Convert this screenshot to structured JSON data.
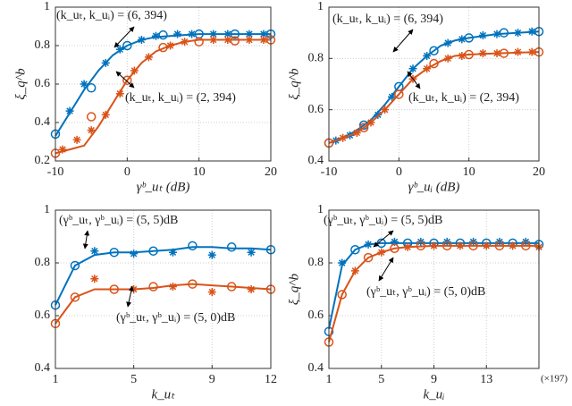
{
  "chart_data": [
    {
      "type": "line",
      "xlabel": "γᵇ_uₜ (dB)",
      "ylabel": "ξ_q^b",
      "xlim": [
        -10,
        20
      ],
      "ylim": [
        0.2,
        1
      ],
      "xticks": [
        -10,
        0,
        10,
        20
      ],
      "yticks": [
        0.2,
        0.4,
        0.6,
        0.8,
        1
      ],
      "grid": true,
      "annotations": [
        "(k_uₜ, k_uᵢ) = (6, 394)",
        "(k_uₜ, k_uᵢ) = (2, 394)"
      ],
      "series": [
        {
          "marker": "line",
          "color": "#0072bd",
          "x": [
            -10,
            -8,
            -6,
            -4,
            -2,
            0,
            2,
            4,
            6,
            8,
            10,
            14,
            20
          ],
          "values": [
            0.33,
            0.45,
            0.57,
            0.67,
            0.75,
            0.8,
            0.83,
            0.845,
            0.85,
            0.855,
            0.86,
            0.86,
            0.86
          ]
        },
        {
          "marker": "circle",
          "color": "#0072bd",
          "x": [
            -10,
            -5,
            0,
            5,
            10,
            15,
            20
          ],
          "values": [
            0.34,
            0.58,
            0.8,
            0.855,
            0.86,
            0.86,
            0.86
          ]
        },
        {
          "marker": "star",
          "color": "#0072bd",
          "x": [
            -8,
            -6,
            -3,
            -1,
            2,
            4,
            7,
            9,
            12,
            14,
            17,
            19
          ],
          "values": [
            0.46,
            0.6,
            0.71,
            0.78,
            0.83,
            0.85,
            0.86,
            0.86,
            0.86,
            0.86,
            0.86,
            0.86
          ]
        },
        {
          "marker": "line",
          "color": "#d95319",
          "x": [
            -10,
            -8,
            -6,
            -4,
            -2,
            0,
            2,
            4,
            6,
            8,
            10,
            14,
            20
          ],
          "values": [
            0.24,
            0.26,
            0.28,
            0.38,
            0.5,
            0.62,
            0.71,
            0.77,
            0.8,
            0.82,
            0.83,
            0.83,
            0.83
          ]
        },
        {
          "marker": "circle",
          "color": "#d95319",
          "x": [
            -10,
            -5,
            0,
            5,
            10,
            15,
            20
          ],
          "values": [
            0.24,
            0.43,
            0.62,
            0.79,
            0.82,
            0.825,
            0.83
          ]
        },
        {
          "marker": "star",
          "color": "#d95319",
          "x": [
            -9,
            -7,
            -5,
            -3,
            -1,
            1,
            3,
            6,
            8,
            12,
            14,
            17,
            19
          ],
          "values": [
            0.26,
            0.31,
            0.36,
            0.44,
            0.55,
            0.67,
            0.74,
            0.8,
            0.82,
            0.83,
            0.83,
            0.83,
            0.83
          ]
        }
      ]
    },
    {
      "type": "line",
      "xlabel": "γᵇ_uᵢ (dB)",
      "ylabel": "ξ_q^b",
      "xlim": [
        -10,
        20
      ],
      "ylim": [
        0.4,
        1
      ],
      "xticks": [
        -10,
        0,
        10,
        20
      ],
      "yticks": [
        0.4,
        0.6,
        0.8,
        1
      ],
      "grid": true,
      "annotations": [
        "(k_uₜ, k_uᵢ) = (6, 394)",
        "(k_uₜ, k_uᵢ) = (2, 394)"
      ],
      "series": [
        {
          "marker": "line",
          "color": "#0072bd",
          "x": [
            -10,
            -8,
            -6,
            -4,
            -2,
            0,
            2,
            4,
            6,
            8,
            10,
            14,
            20
          ],
          "values": [
            0.47,
            0.49,
            0.52,
            0.56,
            0.62,
            0.69,
            0.76,
            0.81,
            0.85,
            0.87,
            0.88,
            0.895,
            0.905
          ]
        },
        {
          "marker": "circle",
          "color": "#0072bd",
          "x": [
            -10,
            -5,
            0,
            5,
            10,
            15,
            20
          ],
          "values": [
            0.47,
            0.54,
            0.69,
            0.83,
            0.88,
            0.9,
            0.905
          ]
        },
        {
          "marker": "star",
          "color": "#0072bd",
          "x": [
            -9,
            -7,
            -3,
            -1,
            2,
            4,
            7,
            9,
            12,
            14,
            17,
            19
          ],
          "values": [
            0.48,
            0.5,
            0.58,
            0.65,
            0.76,
            0.81,
            0.86,
            0.875,
            0.89,
            0.895,
            0.9,
            0.905
          ]
        },
        {
          "marker": "line",
          "color": "#d95319",
          "x": [
            -10,
            -8,
            -6,
            -4,
            -2,
            0,
            2,
            4,
            6,
            8,
            10,
            14,
            20
          ],
          "values": [
            0.47,
            0.49,
            0.51,
            0.55,
            0.6,
            0.66,
            0.72,
            0.76,
            0.79,
            0.81,
            0.815,
            0.82,
            0.825
          ]
        },
        {
          "marker": "circle",
          "color": "#d95319",
          "x": [
            -10,
            -5,
            0,
            5,
            10,
            15,
            20
          ],
          "values": [
            0.47,
            0.53,
            0.66,
            0.78,
            0.815,
            0.82,
            0.825
          ]
        },
        {
          "marker": "star",
          "color": "#d95319",
          "x": [
            -8,
            -6,
            -4,
            -2,
            2,
            4,
            7,
            9,
            12,
            14,
            17,
            19
          ],
          "values": [
            0.49,
            0.51,
            0.55,
            0.6,
            0.72,
            0.76,
            0.8,
            0.81,
            0.82,
            0.82,
            0.825,
            0.825
          ]
        }
      ]
    },
    {
      "type": "line",
      "xlabel": "k_uₜ",
      "xlim": [
        1,
        12
      ],
      "ylim": [
        0.4,
        1
      ],
      "xticks": [
        1,
        5,
        9,
        12
      ],
      "yticks": [
        0.4,
        0.6,
        0.8,
        1
      ],
      "grid": true,
      "annotations": [
        "(γᵇ_uₜ, γᵇ_uᵢ) = (5, 5)dB",
        "(γᵇ_uₜ, γᵇ_uᵢ) = (5, 0)dB"
      ],
      "series": [
        {
          "marker": "line",
          "color": "#0072bd",
          "x": [
            1,
            2,
            3,
            4,
            5,
            6,
            7,
            8,
            9,
            10,
            11,
            12
          ],
          "values": [
            0.64,
            0.79,
            0.83,
            0.84,
            0.84,
            0.845,
            0.85,
            0.86,
            0.86,
            0.855,
            0.855,
            0.85
          ]
        },
        {
          "marker": "circle",
          "color": "#0072bd",
          "x": [
            1,
            2,
            4,
            6,
            8,
            10,
            12
          ],
          "values": [
            0.64,
            0.79,
            0.84,
            0.845,
            0.865,
            0.86,
            0.85
          ]
        },
        {
          "marker": "star",
          "color": "#0072bd",
          "x": [
            3,
            5,
            7,
            9,
            11
          ],
          "values": [
            0.845,
            0.835,
            0.84,
            0.83,
            0.84
          ]
        },
        {
          "marker": "line",
          "color": "#d95319",
          "x": [
            1,
            2,
            3,
            4,
            5,
            6,
            7,
            8,
            9,
            10,
            11,
            12
          ],
          "values": [
            0.57,
            0.67,
            0.7,
            0.7,
            0.7,
            0.705,
            0.715,
            0.72,
            0.715,
            0.71,
            0.705,
            0.7
          ]
        },
        {
          "marker": "circle",
          "color": "#d95319",
          "x": [
            1,
            2,
            4,
            6,
            8,
            10,
            12
          ],
          "values": [
            0.57,
            0.67,
            0.7,
            0.71,
            0.72,
            0.71,
            0.7
          ]
        },
        {
          "marker": "star",
          "color": "#d95319",
          "x": [
            3,
            5,
            7,
            9,
            11
          ],
          "values": [
            0.74,
            0.7,
            0.71,
            0.69,
            0.7
          ]
        }
      ]
    },
    {
      "type": "line",
      "xlabel": "k_uᵢ",
      "ylabel": "ξ_q^b",
      "xunit": "(×197)",
      "xlim": [
        1,
        17
      ],
      "ylim": [
        0.4,
        1
      ],
      "xticks": [
        1,
        5,
        9,
        13
      ],
      "yticks": [
        0.4,
        0.6,
        0.8,
        1
      ],
      "grid": true,
      "annotations": [
        "(γᵇ_uₜ, γᵇ_uᵢ) = (5, 5)dB",
        "(γᵇ_uₜ, γᵇ_uᵢ) = (5, 0)dB"
      ],
      "series": [
        {
          "marker": "line",
          "color": "#0072bd",
          "x": [
            1,
            2,
            3,
            4,
            5,
            6,
            8,
            10,
            13,
            17
          ],
          "values": [
            0.55,
            0.79,
            0.85,
            0.87,
            0.875,
            0.875,
            0.875,
            0.875,
            0.875,
            0.875
          ]
        },
        {
          "marker": "circle",
          "color": "#0072bd",
          "x": [
            1,
            3,
            5,
            7,
            9,
            11,
            13,
            15,
            17
          ],
          "values": [
            0.54,
            0.85,
            0.875,
            0.875,
            0.875,
            0.875,
            0.875,
            0.875,
            0.87
          ]
        },
        {
          "marker": "star",
          "color": "#0072bd",
          "x": [
            2,
            4,
            6,
            8,
            10,
            12,
            14,
            16
          ],
          "values": [
            0.8,
            0.87,
            0.88,
            0.88,
            0.88,
            0.88,
            0.88,
            0.88
          ]
        },
        {
          "marker": "line",
          "color": "#d95319",
          "x": [
            1,
            2,
            3,
            4,
            5,
            6,
            7,
            9,
            12,
            17
          ],
          "values": [
            0.5,
            0.68,
            0.77,
            0.82,
            0.84,
            0.855,
            0.86,
            0.865,
            0.865,
            0.865
          ]
        },
        {
          "marker": "circle",
          "color": "#d95319",
          "x": [
            1,
            2,
            4,
            6,
            8,
            10,
            12,
            14,
            16
          ],
          "values": [
            0.5,
            0.68,
            0.82,
            0.855,
            0.865,
            0.865,
            0.865,
            0.865,
            0.865
          ]
        },
        {
          "marker": "star",
          "color": "#d95319",
          "x": [
            3,
            5,
            7,
            9,
            11,
            13,
            15,
            17
          ],
          "values": [
            0.77,
            0.84,
            0.86,
            0.865,
            0.865,
            0.865,
            0.865,
            0.86
          ]
        }
      ]
    }
  ]
}
